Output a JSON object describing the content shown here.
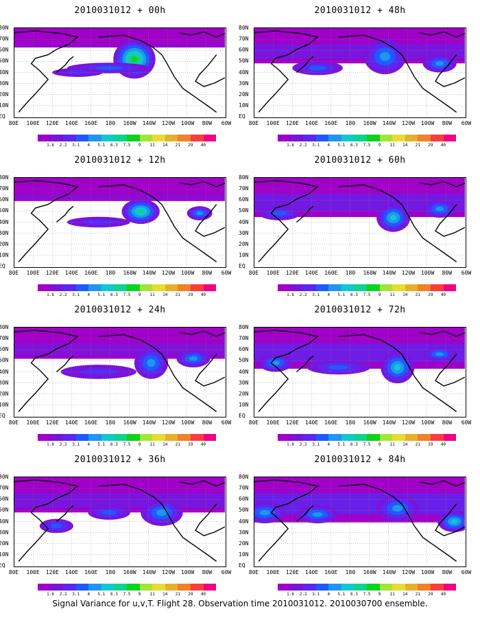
{
  "panels": [
    {
      "title": "2010031012 + 00h",
      "spread": 0.15,
      "blobs": [
        [
          0.57,
          0.35,
          0.1,
          0.22,
          0.9
        ],
        [
          0.45,
          0.45,
          0.2,
          0.06,
          0.35
        ],
        [
          0.3,
          0.5,
          0.12,
          0.05,
          0.3
        ]
      ]
    },
    {
      "title": "2010031012 + 48h",
      "spread": 0.55,
      "blobs": [
        [
          0.62,
          0.32,
          0.1,
          0.2,
          0.55
        ],
        [
          0.88,
          0.4,
          0.08,
          0.1,
          0.5
        ],
        [
          0.3,
          0.45,
          0.12,
          0.08,
          0.35
        ]
      ]
    },
    {
      "title": "2010031012 + 12h",
      "spread": 0.25,
      "blobs": [
        [
          0.6,
          0.38,
          0.09,
          0.14,
          0.8
        ],
        [
          0.88,
          0.4,
          0.06,
          0.08,
          0.45
        ],
        [
          0.4,
          0.5,
          0.15,
          0.06,
          0.3
        ]
      ]
    },
    {
      "title": "2010031012 + 60h",
      "spread": 0.65,
      "blobs": [
        [
          0.66,
          0.45,
          0.08,
          0.16,
          0.6
        ],
        [
          0.88,
          0.35,
          0.08,
          0.1,
          0.45
        ],
        [
          0.12,
          0.4,
          0.1,
          0.08,
          0.4
        ]
      ]
    },
    {
      "title": "2010031012 + 24h",
      "spread": 0.45,
      "blobs": [
        [
          0.65,
          0.4,
          0.08,
          0.18,
          0.5
        ],
        [
          0.85,
          0.35,
          0.08,
          0.1,
          0.45
        ],
        [
          0.4,
          0.5,
          0.18,
          0.08,
          0.3
        ]
      ]
    },
    {
      "title": "2010031012 + 72h",
      "spread": 0.7,
      "blobs": [
        [
          0.68,
          0.45,
          0.08,
          0.18,
          0.6
        ],
        [
          0.1,
          0.4,
          0.08,
          0.1,
          0.45
        ],
        [
          0.4,
          0.45,
          0.15,
          0.08,
          0.4
        ],
        [
          0.88,
          0.3,
          0.08,
          0.08,
          0.45
        ]
      ]
    },
    {
      "title": "2010031012 + 36h",
      "spread": 0.55,
      "blobs": [
        [
          0.7,
          0.4,
          0.1,
          0.15,
          0.5
        ],
        [
          0.45,
          0.4,
          0.1,
          0.08,
          0.4
        ],
        [
          0.2,
          0.55,
          0.08,
          0.08,
          0.35
        ]
      ]
    },
    {
      "title": "2010031012 + 84h",
      "spread": 0.8,
      "blobs": [
        [
          0.05,
          0.4,
          0.1,
          0.12,
          0.55
        ],
        [
          0.3,
          0.42,
          0.1,
          0.1,
          0.5
        ],
        [
          0.95,
          0.5,
          0.08,
          0.12,
          0.6
        ],
        [
          0.68,
          0.35,
          0.1,
          0.15,
          0.45
        ]
      ]
    }
  ],
  "y_labels": [
    "80N",
    "70N",
    "60N",
    "50N",
    "40N",
    "30N",
    "20N",
    "10N",
    "EQ"
  ],
  "x_labels": [
    "80E",
    "100E",
    "120E",
    "140E",
    "160E",
    "180",
    "160W",
    "140W",
    "120W",
    "100W",
    "80W",
    "60W"
  ],
  "colorbar": {
    "colors": [
      "#a000c8",
      "#7814dc",
      "#5a28f0",
      "#1e5aff",
      "#1e96f0",
      "#10c8d2",
      "#10d28c",
      "#10d21e",
      "#a0e632",
      "#e6dc32",
      "#e6af2d",
      "#f08228",
      "#fa3c3c",
      "#f00082"
    ],
    "labels": [
      "1.6",
      "2.2",
      "3.1",
      "4",
      "5.1",
      "6.3",
      "7.5",
      "9",
      "11",
      "14",
      "21",
      "29",
      "40"
    ]
  },
  "footer": "Signal Variance for u,v,T. Flight 28. Observation time 2010031012. 2010030700 ensemble."
}
